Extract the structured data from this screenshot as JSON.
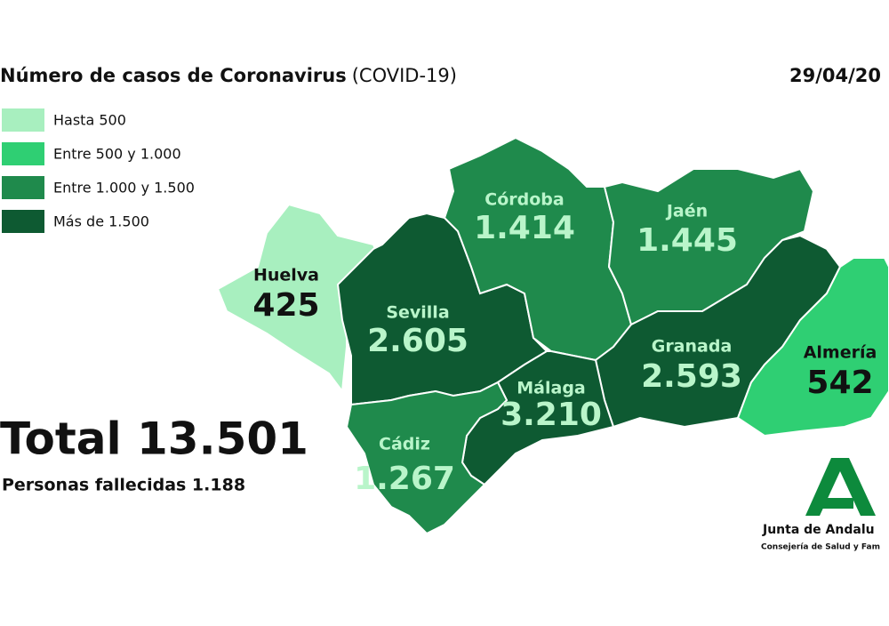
{
  "header": {
    "title": "Número de casos de Coronavirus",
    "title_note": "(COVID-19)",
    "date": "29/04/20"
  },
  "legend": [
    {
      "label": "Hasta 500",
      "color": "#a8efbf"
    },
    {
      "label": "Entre 500 y 1.000",
      "color": "#2fcf73"
    },
    {
      "label": "Entre 1.000 y 1.500",
      "color": "#1f8a4c"
    },
    {
      "label": "Más de 1.500",
      "color": "#0e5a32"
    }
  ],
  "provinces": [
    {
      "name": "Huelva",
      "value": "425",
      "color": "#a8efbf",
      "text_color": "#111111"
    },
    {
      "name": "Sevilla",
      "value": "2.605",
      "color": "#0e5a32",
      "text_color": "#b9f5ca"
    },
    {
      "name": "Córdoba",
      "value": "1.414",
      "color": "#1f8a4c",
      "text_color": "#b9f5ca"
    },
    {
      "name": "Jaén",
      "value": "1.445",
      "color": "#1f8a4c",
      "text_color": "#b9f5ca"
    },
    {
      "name": "Granada",
      "value": "2.593",
      "color": "#0e5a32",
      "text_color": "#b9f5ca"
    },
    {
      "name": "Almería",
      "value": "542",
      "color": "#2fcf73",
      "text_color": "#111111"
    },
    {
      "name": "Málaga",
      "value": "3.210",
      "color": "#0e5a32",
      "text_color": "#b9f5ca"
    },
    {
      "name": "Cádiz",
      "value": "1.267",
      "color": "#1f8a4c",
      "text_color": "#b9f5ca"
    }
  ],
  "total": {
    "label": "Total 13.501",
    "deaths": "Personas fallecidas 1.188"
  },
  "logo": {
    "name": "Junta de Andalu",
    "department": "Consejería de Salud y Fam"
  }
}
